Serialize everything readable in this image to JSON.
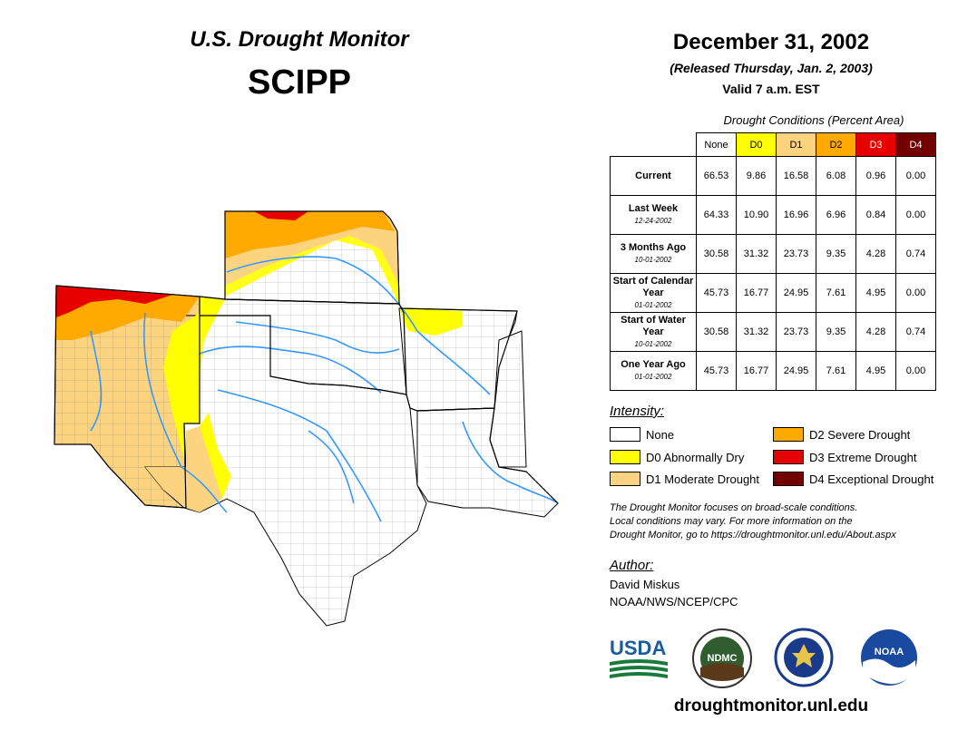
{
  "header": {
    "title": "U.S. Drought Monitor",
    "region": "SCIPP",
    "date": "December 31, 2002",
    "released": "(Released Thursday, Jan. 2, 2003)",
    "valid": "Valid 7 a.m. EST"
  },
  "table": {
    "caption": "Drought Conditions (Percent Area)",
    "columns": [
      "None",
      "D0",
      "D1",
      "D2",
      "D3",
      "D4"
    ],
    "column_colors": [
      "#ffffff",
      "#ffff00",
      "#fcd37f",
      "#ffaa00",
      "#e60000",
      "#730000"
    ],
    "rows": [
      {
        "label": "Current",
        "sub": "",
        "values": [
          "66.53",
          "9.86",
          "16.58",
          "6.08",
          "0.96",
          "0.00"
        ]
      },
      {
        "label": "Last Week",
        "sub": "12-24-2002",
        "values": [
          "64.33",
          "10.90",
          "16.96",
          "6.96",
          "0.84",
          "0.00"
        ]
      },
      {
        "label": "3 Months Ago",
        "sub": "10-01-2002",
        "values": [
          "30.58",
          "31.32",
          "23.73",
          "9.35",
          "4.28",
          "0.74"
        ]
      },
      {
        "label": "Start of Calendar Year",
        "sub": "01-01-2002",
        "values": [
          "45.73",
          "16.77",
          "24.95",
          "7.61",
          "4.95",
          "0.00"
        ]
      },
      {
        "label": "Start of Water Year",
        "sub": "10-01-2002",
        "values": [
          "30.58",
          "31.32",
          "23.73",
          "9.35",
          "4.28",
          "0.74"
        ]
      },
      {
        "label": "One Year Ago",
        "sub": "01-01-2002",
        "values": [
          "45.73",
          "16.77",
          "24.95",
          "7.61",
          "4.95",
          "0.00"
        ]
      }
    ]
  },
  "legend": {
    "title": "Intensity:",
    "items": [
      {
        "label": "None",
        "color": "#ffffff"
      },
      {
        "label": "D0 Abnormally Dry",
        "color": "#ffff00"
      },
      {
        "label": "D1 Moderate Drought",
        "color": "#fcd37f"
      },
      {
        "label": "D2 Severe Drought",
        "color": "#ffaa00"
      },
      {
        "label": "D3 Extreme Drought",
        "color": "#e60000"
      },
      {
        "label": "D4 Exceptional Drought",
        "color": "#730000"
      }
    ]
  },
  "disclaimer": {
    "line1": "The Drought Monitor focuses on broad-scale conditions.",
    "line2": "Local conditions may vary. For more information on the",
    "line3": "Drought Monitor, go to https://droughtmonitor.unl.edu/About.aspx"
  },
  "author": {
    "title": "Author:",
    "name": "David Miskus",
    "org": "NOAA/NWS/NCEP/CPC"
  },
  "logos": {
    "usda": "USDA",
    "ndmc": "NDMC",
    "noaa": "NOAA"
  },
  "website": "droughtmonitor.unl.edu",
  "colors": {
    "water": "#3399ff",
    "county_line": "#555555",
    "state_line": "#000000"
  }
}
